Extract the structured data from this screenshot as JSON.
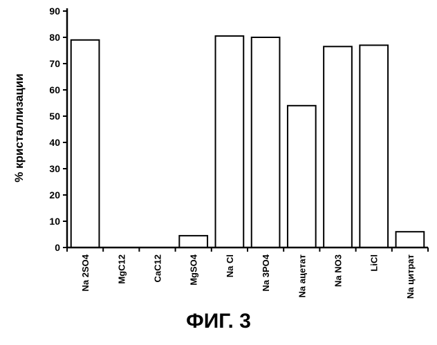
{
  "figure": {
    "caption": "ФИГ. 3"
  },
  "chart_data": {
    "type": "bar",
    "title": "",
    "xlabel": "",
    "ylabel": "% кристаллизации",
    "ylim": [
      0,
      90
    ],
    "yticks": [
      0,
      10,
      20,
      30,
      40,
      50,
      60,
      70,
      80,
      90
    ],
    "categories": [
      "Na 2SO4",
      "MgC12",
      "CaC12",
      "MgSO4",
      "Na Cl",
      "Na 3PO4",
      "Na ацетат",
      "Na NO3",
      "LiCl",
      "Na цитрат"
    ],
    "values": [
      79,
      0,
      0,
      4.5,
      80.5,
      80,
      54,
      76.5,
      77,
      6
    ],
    "grid": false,
    "legend": "none",
    "bar_fill": "#ffffff",
    "bar_stroke": "#000000"
  }
}
